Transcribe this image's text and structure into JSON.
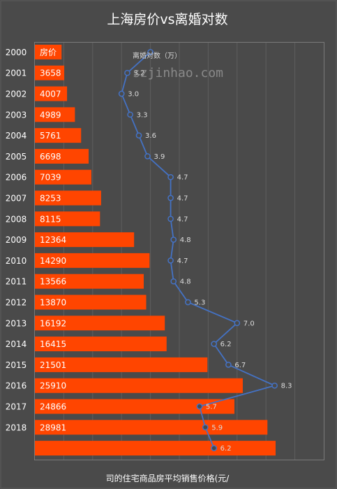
{
  "chart_data": {
    "type": "bar",
    "title": "上海房价vs离婚对数",
    "xlabel": "司的住宅商品房平均销售价格(元/",
    "categories": [
      "2000",
      "2001",
      "2002",
      "2003",
      "2004",
      "2005",
      "2006",
      "2007",
      "2008",
      "2009",
      "2010",
      "2011",
      "2012",
      "2013",
      "2014",
      "2015",
      "2016",
      "2017",
      "2018",
      ""
    ],
    "series": [
      {
        "name": "房价",
        "type": "bar",
        "color": "#ff4500",
        "values": [
          3326,
          3658,
          4007,
          4989,
          5761,
          6698,
          7039,
          8253,
          8115,
          12364,
          14290,
          13566,
          13870,
          16192,
          16415,
          21501,
          25910,
          24866,
          28981,
          30000
        ]
      },
      {
        "name": "离婚对数（万）",
        "type": "line",
        "color": "#4472c4",
        "values": [
          4.0,
          3.2,
          3.0,
          3.3,
          3.6,
          3.9,
          4.7,
          4.7,
          4.7,
          4.8,
          4.7,
          4.8,
          5.3,
          7.0,
          6.2,
          6.7,
          8.3,
          5.7,
          5.9,
          6.2
        ]
      }
    ],
    "bar_labels": [
      "房价",
      "3658",
      "4007",
      "4989",
      "5761",
      "6698",
      "7039",
      "8253",
      "8115",
      "12364",
      "14290",
      "13566",
      "13870",
      "16192",
      "16415",
      "21501",
      "25910",
      "24866",
      "28981",
      ""
    ],
    "line_labels": [
      "",
      "3.2",
      "3.0",
      "3.3",
      "3.6",
      "3.9",
      "4.7",
      "4.7",
      "4.7",
      "4.8",
      "4.7",
      "4.8",
      "5.3",
      "7.0",
      "6.2",
      "6.7",
      "8.3",
      "5.7",
      "5.9",
      "6.2"
    ],
    "bar_axis": [
      0,
      36000
    ],
    "line_axis": [
      0,
      10
    ],
    "grid": true,
    "legend_position": "top",
    "watermark": "szjinhao.com"
  }
}
